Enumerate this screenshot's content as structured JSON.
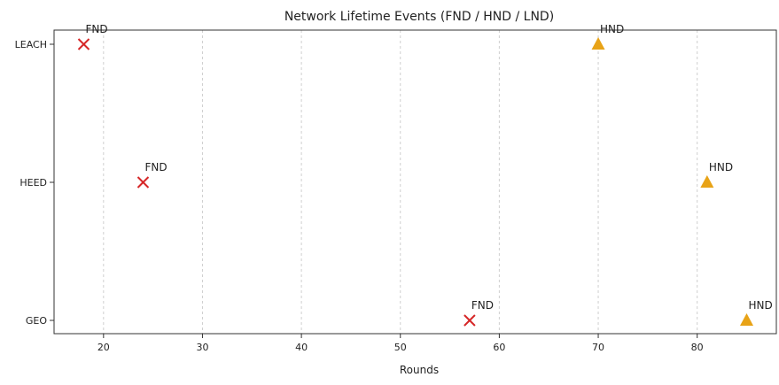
{
  "chart_data": {
    "type": "scatter",
    "title": "Network Lifetime Events (FND / HND / LND)",
    "xlabel": "Rounds",
    "ylabel": "",
    "xlim": [
      15,
      88
    ],
    "xticks": [
      20,
      30,
      40,
      50,
      60,
      70,
      80
    ],
    "categories": [
      "LEACH",
      "HEED",
      "GEO"
    ],
    "grid": {
      "x": true,
      "y": false,
      "style": "dashed"
    },
    "legend": "none",
    "series": [
      {
        "name": "FND",
        "marker": "x",
        "color": "#d62728",
        "points": [
          {
            "category": "LEACH",
            "x": 18,
            "label": "FND"
          },
          {
            "category": "HEED",
            "x": 24,
            "label": "FND"
          },
          {
            "category": "GEO",
            "x": 57,
            "label": "FND"
          }
        ]
      },
      {
        "name": "HND",
        "marker": "triangle",
        "color": "#e8a317",
        "points": [
          {
            "category": "LEACH",
            "x": 70,
            "label": "HND"
          },
          {
            "category": "HEED",
            "x": 81,
            "label": "HND"
          },
          {
            "category": "GEO",
            "x": 85,
            "label": "HND"
          }
        ]
      }
    ]
  }
}
